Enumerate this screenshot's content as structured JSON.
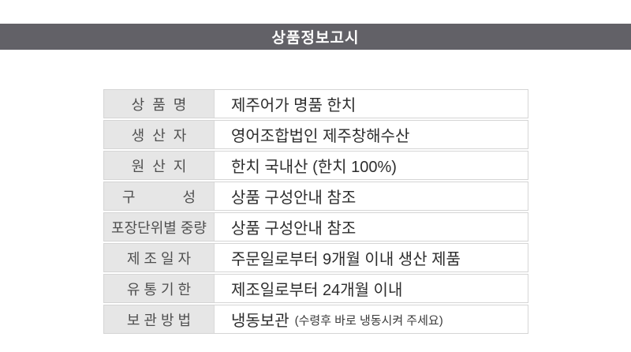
{
  "header": {
    "title": "상품정보고시",
    "bg_color": "#626167",
    "text_color": "#ffffff"
  },
  "table": {
    "colors": {
      "label_bg": "#e6e6e6",
      "border": "#d5d5d5",
      "label_text": "#4f4f4f",
      "value_text": "#2d2d2d"
    },
    "rows": [
      {
        "label": "상  품  명",
        "value": "제주어가 명품 한치"
      },
      {
        "label": "생  산  자",
        "value": "영어조합법인 제주창해수산"
      },
      {
        "label": "원  산  지",
        "value": "한치 국내산 (한치 100%)"
      },
      {
        "label": "구            성",
        "value": "상품 구성안내 참조"
      },
      {
        "label": "포장단위별 중량",
        "value": "상품 구성안내 참조"
      },
      {
        "label": "제 조 일 자",
        "value": "주문일로부터 9개월 이내 생산 제품"
      },
      {
        "label": "유 통 기 한",
        "value": "제조일로부터 24개월 이내"
      },
      {
        "label": "보 관 방 법",
        "value": "냉동보관",
        "note": "(수령후 바로 냉동시켜 주세요)"
      }
    ]
  }
}
